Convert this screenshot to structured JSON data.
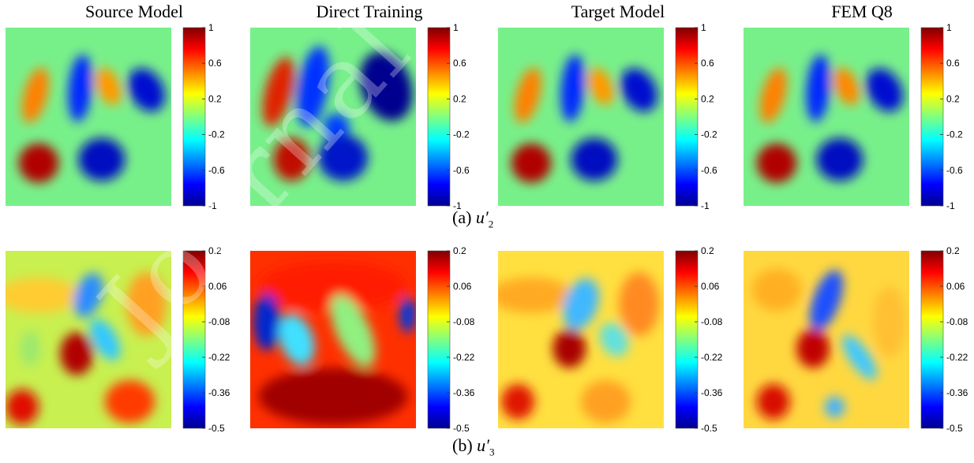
{
  "chart_data": [
    {
      "type": "heatmap",
      "panel_caption": "(a)",
      "variable": "u",
      "variable_prime": "′",
      "variable_subscript": "2",
      "columns": [
        "Source Model",
        "Direct Training",
        "Target Model",
        "FEM Q8"
      ],
      "colorbar_ticks": [
        "1",
        "0.6",
        "0.2",
        "-0.2",
        "-0.6",
        "-1"
      ],
      "colorbar_range": [
        -1,
        1
      ],
      "colormap": "jet"
    },
    {
      "type": "heatmap",
      "panel_caption": "(b)",
      "variable": "u",
      "variable_prime": "′",
      "variable_subscript": "3",
      "columns": [
        "Source Model",
        "Direct Training",
        "Target Model",
        "FEM Q8"
      ],
      "colorbar_ticks": [
        "0.2",
        "0.06",
        "-0.08",
        "-0.22",
        "-0.36",
        "-0.5"
      ],
      "colorbar_range": [
        -0.5,
        0.2
      ],
      "colormap": "jet"
    }
  ],
  "watermark": "Journal"
}
